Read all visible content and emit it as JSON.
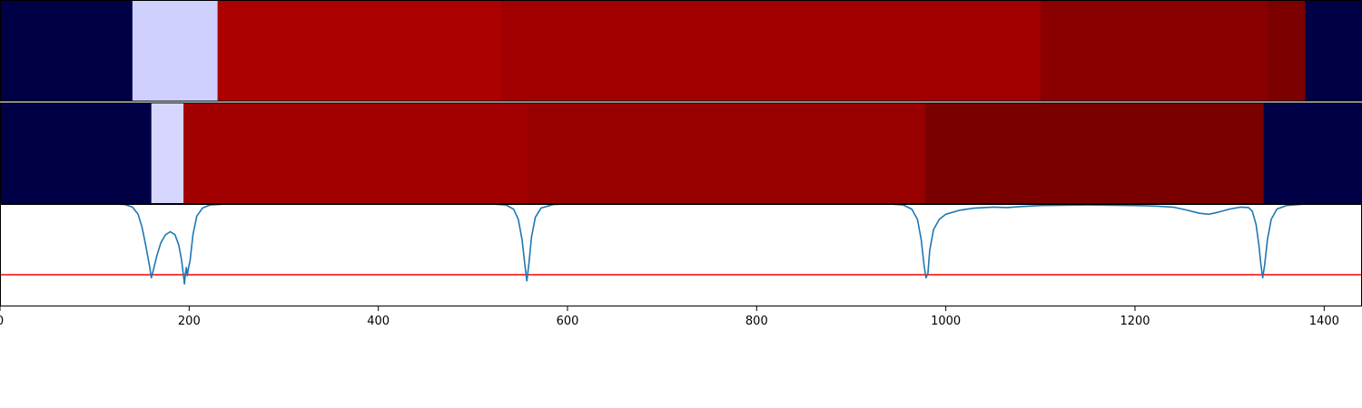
{
  "chart_data": {
    "type": "heatmap",
    "xlim": [
      0,
      1440
    ],
    "x_ticks": [
      0,
      200,
      400,
      600,
      800,
      1000,
      1200,
      1400
    ],
    "x_tick_labels": [
      "0",
      "200",
      "400",
      "600",
      "800",
      "1000",
      "1200",
      "1400"
    ],
    "grid": false,
    "rows": [
      {
        "segments": [
          {
            "start": 0,
            "end": 140,
            "color": "#000046"
          },
          {
            "start": 140,
            "end": 230,
            "color": "#d0d0ff"
          },
          {
            "start": 230,
            "end": 530,
            "color": "#ad0000"
          },
          {
            "start": 530,
            "end": 1100,
            "color": "#a20000"
          },
          {
            "start": 1100,
            "end": 1340,
            "color": "#8a0000"
          },
          {
            "start": 1340,
            "end": 1380,
            "color": "#7c0000"
          },
          {
            "start": 1380,
            "end": 1440,
            "color": "#000046"
          }
        ]
      },
      {
        "segments": [
          {
            "start": 0,
            "end": 160,
            "color": "#000046"
          },
          {
            "start": 160,
            "end": 194,
            "color": "#d6d6ff"
          },
          {
            "start": 194,
            "end": 558,
            "color": "#a20000"
          },
          {
            "start": 558,
            "end": 978,
            "color": "#980000"
          },
          {
            "start": 978,
            "end": 1336,
            "color": "#7a0000"
          },
          {
            "start": 1336,
            "end": 1440,
            "color": "#000046"
          }
        ]
      }
    ],
    "line_panel": {
      "ylim": [
        0,
        1
      ],
      "series": [
        {
          "color": "#1f77b4",
          "points": [
            [
              0,
              1.0
            ],
            [
              120,
              1.0
            ],
            [
              132,
              0.995
            ],
            [
              140,
              0.97
            ],
            [
              146,
              0.9
            ],
            [
              150,
              0.78
            ],
            [
              154,
              0.6
            ],
            [
              158,
              0.4
            ],
            [
              160,
              0.28
            ],
            [
              162,
              0.35
            ],
            [
              166,
              0.5
            ],
            [
              170,
              0.62
            ],
            [
              175,
              0.7
            ],
            [
              180,
              0.73
            ],
            [
              185,
              0.7
            ],
            [
              189,
              0.6
            ],
            [
              192,
              0.45
            ],
            [
              194,
              0.3
            ],
            [
              195,
              0.22
            ],
            [
              196,
              0.32
            ],
            [
              197,
              0.38
            ],
            [
              198,
              0.3
            ],
            [
              199,
              0.36
            ],
            [
              201,
              0.45
            ],
            [
              204,
              0.7
            ],
            [
              208,
              0.88
            ],
            [
              214,
              0.96
            ],
            [
              222,
              0.99
            ],
            [
              240,
              1.0
            ],
            [
              520,
              1.0
            ],
            [
              535,
              0.99
            ],
            [
              543,
              0.95
            ],
            [
              548,
              0.85
            ],
            [
              552,
              0.65
            ],
            [
              555,
              0.4
            ],
            [
              557,
              0.25
            ],
            [
              559,
              0.4
            ],
            [
              562,
              0.68
            ],
            [
              566,
              0.87
            ],
            [
              572,
              0.96
            ],
            [
              585,
              0.995
            ],
            [
              600,
              1.0
            ],
            [
              940,
              1.0
            ],
            [
              955,
              0.99
            ],
            [
              964,
              0.95
            ],
            [
              970,
              0.85
            ],
            [
              974,
              0.65
            ],
            [
              977,
              0.4
            ],
            [
              979,
              0.28
            ],
            [
              981,
              0.32
            ],
            [
              983,
              0.55
            ],
            [
              987,
              0.75
            ],
            [
              993,
              0.85
            ],
            [
              1000,
              0.9
            ],
            [
              1015,
              0.94
            ],
            [
              1030,
              0.96
            ],
            [
              1050,
              0.97
            ],
            [
              1065,
              0.965
            ],
            [
              1080,
              0.975
            ],
            [
              1100,
              0.985
            ],
            [
              1150,
              0.99
            ],
            [
              1200,
              0.985
            ],
            [
              1220,
              0.98
            ],
            [
              1240,
              0.97
            ],
            [
              1255,
              0.94
            ],
            [
              1268,
              0.91
            ],
            [
              1278,
              0.9
            ],
            [
              1288,
              0.92
            ],
            [
              1300,
              0.95
            ],
            [
              1312,
              0.97
            ],
            [
              1320,
              0.965
            ],
            [
              1324,
              0.93
            ],
            [
              1328,
              0.8
            ],
            [
              1331,
              0.6
            ],
            [
              1333,
              0.42
            ],
            [
              1335,
              0.28
            ],
            [
              1337,
              0.4
            ],
            [
              1340,
              0.65
            ],
            [
              1344,
              0.85
            ],
            [
              1350,
              0.95
            ],
            [
              1360,
              0.985
            ],
            [
              1380,
              1.0
            ],
            [
              1440,
              1.0
            ]
          ]
        }
      ],
      "hlines": [
        {
          "y": 0.31,
          "color": "#ff0000"
        }
      ]
    }
  }
}
